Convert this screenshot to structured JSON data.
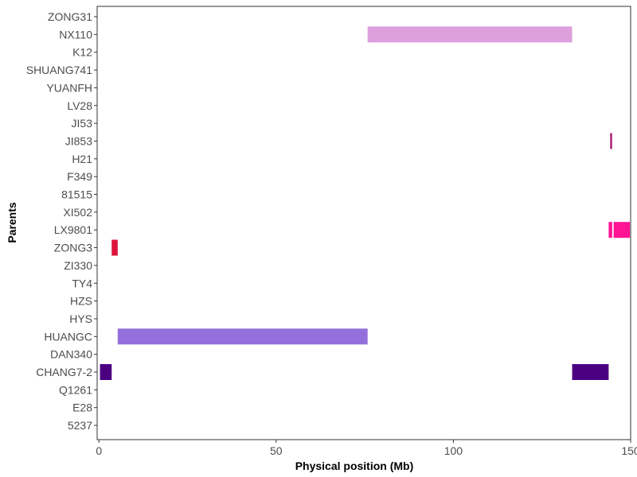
{
  "chart_data": {
    "type": "bar",
    "orientation": "horizontal-ranges",
    "title": "",
    "xlabel": "Physical position (Mb)",
    "ylabel": "Parents",
    "xlim": [
      -0.5,
      150
    ],
    "x_ticks": [
      0,
      50,
      100,
      150
    ],
    "categories_top_to_bottom": [
      "ZONG31",
      "NX110",
      "K12",
      "SHUANG741",
      "YUANFH",
      "LV28",
      "JI53",
      "JI853",
      "H21",
      "F349",
      "81515",
      "XI502",
      "LX9801",
      "ZONG3",
      "ZI330",
      "TY4",
      "HZS",
      "HYS",
      "HUANGC",
      "DAN340",
      "CHANG7-2",
      "Q1261",
      "E28",
      "5237"
    ],
    "grid": false,
    "legend": "none",
    "segments": [
      {
        "parent": "NX110",
        "start": 75.8,
        "end": 133.5,
        "color": "#DDA0DD"
      },
      {
        "parent": "JI853",
        "start": 144.2,
        "end": 144.8,
        "color": "#B0307A"
      },
      {
        "parent": "LX9801",
        "start": 143.8,
        "end": 144.8,
        "color": "#FF1493"
      },
      {
        "parent": "LX9801",
        "start": 145.2,
        "end": 149.8,
        "color": "#FF1493"
      },
      {
        "parent": "ZONG3",
        "start": 3.6,
        "end": 5.3,
        "color": "#DC143C"
      },
      {
        "parent": "HUANGC",
        "start": 5.3,
        "end": 75.8,
        "color": "#9370DB"
      },
      {
        "parent": "CHANG7-2",
        "start": 0.3,
        "end": 3.6,
        "color": "#4B0082"
      },
      {
        "parent": "CHANG7-2",
        "start": 133.5,
        "end": 143.8,
        "color": "#4B0082"
      }
    ]
  }
}
